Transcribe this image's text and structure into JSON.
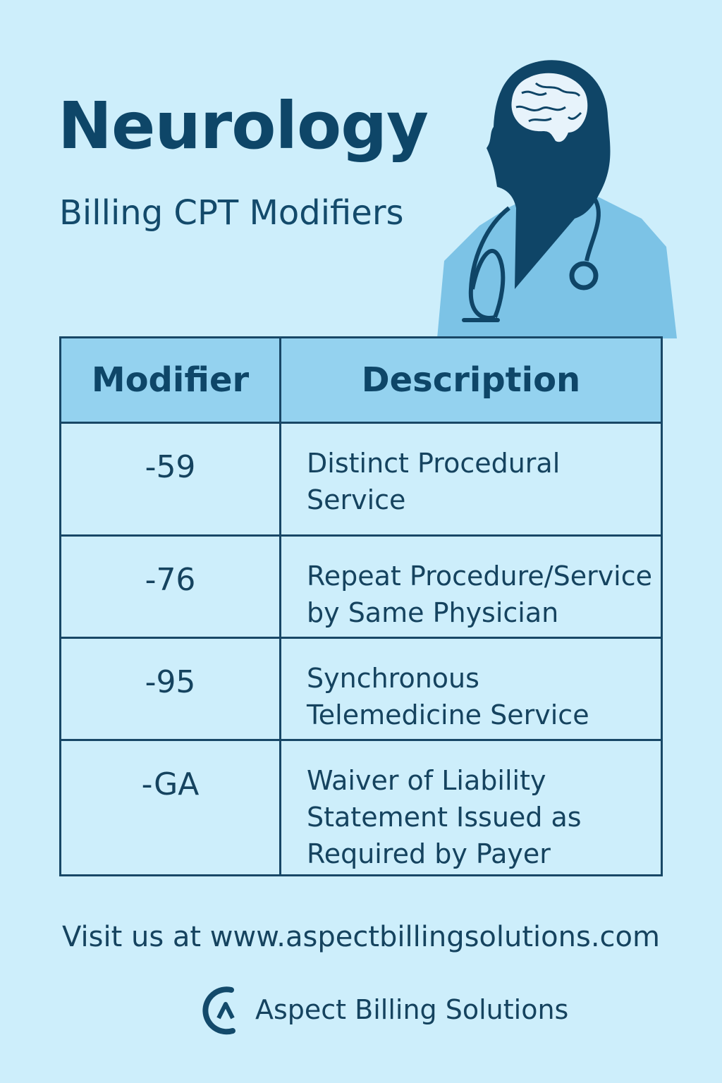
{
  "header": {
    "title": "Neurology",
    "subtitle": "Billing CPT Modifiers"
  },
  "illustration": {
    "icon": "doctor-with-brain-and-stethoscope-icon",
    "colors": {
      "silhouette": "#0f4567",
      "coat": "#7cc3e6",
      "brain": "#e7f3fb"
    }
  },
  "table": {
    "headers": {
      "modifier": "Modifier",
      "description": "Description"
    },
    "rows": [
      {
        "modifier": "-59",
        "line1": "Distinct Procedural",
        "line2": "Service",
        "line3": ""
      },
      {
        "modifier": "-76",
        "line1": "Repeat Procedure/Service",
        "line2": "by Same Physician",
        "line3": ""
      },
      {
        "modifier": "-95",
        "line1": "Synchronous",
        "line2": "Telemedicine Service",
        "line3": ""
      },
      {
        "modifier": "-GA",
        "line1": "Waiver of Liability",
        "line2": "Statement Issued as",
        "line3": "Required by Payer"
      }
    ]
  },
  "footer": {
    "visit": "Visit us at www.aspectbillingsolutions.com",
    "brand": "Aspect Billing Solutions",
    "logo_icon": "aspect-logo-icon"
  },
  "colors": {
    "background": "#cdeefb",
    "header_fill": "#94d2ef",
    "text_dark": "#0e4668"
  }
}
